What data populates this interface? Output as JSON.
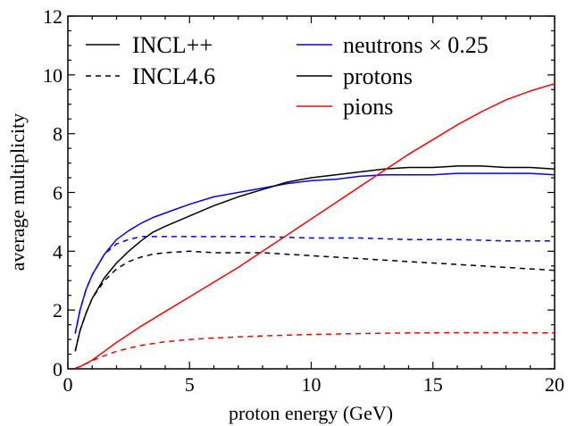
{
  "chart_data": {
    "type": "line",
    "xlabel": "proton energy (GeV)",
    "ylabel": "average multiplicity",
    "xlim": [
      0,
      20
    ],
    "ylim": [
      0,
      12
    ],
    "xticks": [
      "0",
      "5",
      "10",
      "15",
      "20"
    ],
    "yticks": [
      "0",
      "2",
      "4",
      "6",
      "8",
      "10",
      "12"
    ],
    "grid": false,
    "legend": {
      "style_entries": [
        {
          "label": "INCL++",
          "dash": "solid"
        },
        {
          "label": "INCL4.6",
          "dash": "dashed"
        }
      ],
      "color_entries": [
        {
          "label": "neutrons × 0.25",
          "color": "#0000ff"
        },
        {
          "label": "protons",
          "color": "#000000"
        },
        {
          "label": "pions",
          "color": "#ff0000"
        }
      ]
    },
    "series": [
      {
        "particle": "neutrons",
        "model": "INCL++",
        "color": "#0000ff",
        "dash": "solid",
        "x": [
          0.3,
          0.5,
          0.75,
          1,
          1.5,
          2,
          2.5,
          3,
          3.5,
          4,
          5,
          6,
          7,
          8,
          9,
          10,
          11,
          12,
          13,
          14,
          15,
          16,
          17,
          18,
          19,
          20
        ],
        "y": [
          1.2,
          2.0,
          2.7,
          3.2,
          3.9,
          4.4,
          4.7,
          4.95,
          5.15,
          5.3,
          5.6,
          5.85,
          6.0,
          6.15,
          6.3,
          6.4,
          6.45,
          6.55,
          6.6,
          6.6,
          6.6,
          6.65,
          6.65,
          6.65,
          6.65,
          6.6
        ]
      },
      {
        "particle": "neutrons",
        "model": "INCL4.6",
        "color": "#0000ff",
        "dash": "dashed",
        "x": [
          0.3,
          0.5,
          0.75,
          1,
          1.5,
          2,
          2.5,
          3,
          4,
          5,
          6,
          8,
          10,
          12,
          14,
          16,
          18,
          20
        ],
        "y": [
          1.2,
          2.0,
          2.7,
          3.2,
          3.9,
          4.25,
          4.4,
          4.5,
          4.5,
          4.5,
          4.5,
          4.5,
          4.45,
          4.45,
          4.4,
          4.4,
          4.35,
          4.35
        ]
      },
      {
        "particle": "protons",
        "model": "INCL++",
        "color": "#000000",
        "dash": "solid",
        "x": [
          0.3,
          0.5,
          0.75,
          1,
          1.5,
          2,
          2.5,
          3,
          3.5,
          4,
          5,
          6,
          7,
          8,
          9,
          10,
          11,
          12,
          13,
          14,
          15,
          16,
          17,
          18,
          19,
          20
        ],
        "y": [
          0.6,
          1.3,
          1.9,
          2.4,
          3.1,
          3.6,
          4.0,
          4.35,
          4.65,
          4.85,
          5.2,
          5.55,
          5.85,
          6.1,
          6.35,
          6.5,
          6.6,
          6.7,
          6.8,
          6.85,
          6.85,
          6.9,
          6.9,
          6.85,
          6.85,
          6.8
        ]
      },
      {
        "particle": "protons",
        "model": "INCL4.6",
        "color": "#000000",
        "dash": "dashed",
        "x": [
          0.3,
          0.5,
          0.75,
          1,
          1.5,
          2,
          2.5,
          3,
          3.5,
          4,
          5,
          6,
          8,
          10,
          12,
          14,
          16,
          18,
          20
        ],
        "y": [
          0.6,
          1.3,
          1.9,
          2.4,
          3.0,
          3.4,
          3.65,
          3.8,
          3.9,
          3.95,
          4.0,
          3.95,
          3.95,
          3.85,
          3.75,
          3.65,
          3.55,
          3.45,
          3.35
        ]
      },
      {
        "particle": "pions",
        "model": "INCL++",
        "color": "#ff0000",
        "dash": "solid",
        "x": [
          0.3,
          0.5,
          0.75,
          1,
          1.5,
          2,
          3,
          4,
          5,
          6,
          7,
          8,
          9,
          10,
          11,
          12,
          13,
          14,
          15,
          16,
          17,
          18,
          19,
          20
        ],
        "y": [
          0.02,
          0.08,
          0.18,
          0.3,
          0.6,
          0.9,
          1.45,
          1.95,
          2.45,
          2.95,
          3.45,
          4.0,
          4.55,
          5.1,
          5.65,
          6.2,
          6.75,
          7.3,
          7.8,
          8.3,
          8.75,
          9.15,
          9.45,
          9.7
        ]
      },
      {
        "particle": "pions",
        "model": "INCL4.6",
        "color": "#ff0000",
        "dash": "dashed",
        "x": [
          0.3,
          0.5,
          0.75,
          1,
          1.5,
          2,
          3,
          4,
          5,
          6,
          8,
          10,
          12,
          14,
          16,
          18,
          20
        ],
        "y": [
          0.02,
          0.08,
          0.18,
          0.28,
          0.45,
          0.6,
          0.8,
          0.92,
          1.0,
          1.05,
          1.12,
          1.17,
          1.2,
          1.22,
          1.23,
          1.23,
          1.22
        ]
      }
    ]
  }
}
